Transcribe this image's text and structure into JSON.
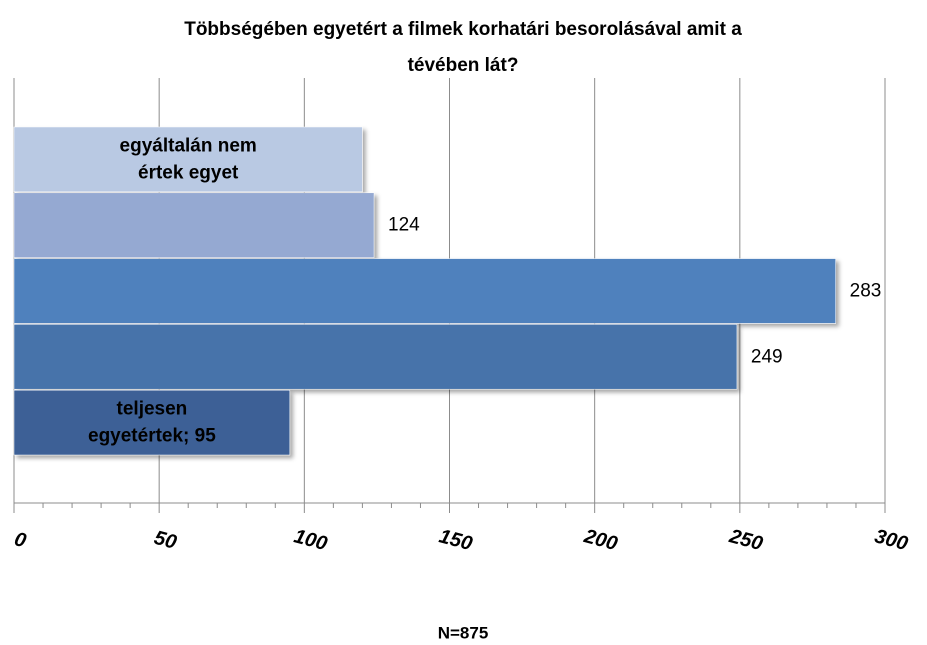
{
  "chart_data": {
    "type": "bar",
    "orientation": "horizontal",
    "title": "Többségében egyetért a filmek korhatári besorolásával amit a tévében lát?",
    "categories": [
      "egyáltalán nem értek egyet",
      null,
      null,
      null,
      null
    ],
    "values": [
      120,
      124,
      283,
      249,
      95
    ],
    "value_labels": [
      null,
      "124",
      "283",
      "249",
      "teljesen egyetértek; 95"
    ],
    "colors": [
      "#b9c9e3",
      "#95a9d2",
      "#4f81bd",
      "#4673aa",
      "#3d6096"
    ],
    "xlim": [
      0,
      300
    ],
    "xticks": [
      0,
      50,
      100,
      150,
      200,
      250,
      300
    ],
    "grid": true,
    "note": "N=875"
  }
}
